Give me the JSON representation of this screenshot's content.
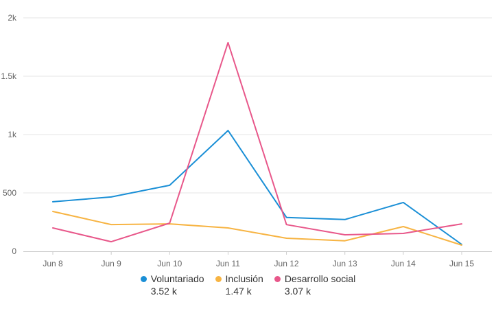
{
  "chart_data": {
    "type": "line",
    "title": "",
    "xlabel": "",
    "ylabel": "",
    "categories": [
      "Jun 8",
      "Jun 9",
      "Jun 10",
      "Jun 11",
      "Jun 12",
      "Jun 13",
      "Jun 14",
      "Jun 15"
    ],
    "ylim": [
      0,
      2000
    ],
    "yticks": [
      0,
      500,
      1000,
      1500,
      2000
    ],
    "ytick_labels": [
      "0",
      "500",
      "1k",
      "1.5k",
      "2k"
    ],
    "grid": true,
    "legend_position": "bottom",
    "series": [
      {
        "name": "Voluntariado",
        "color": "#1a8fd6",
        "total_label": "3.52 k",
        "values": [
          424,
          465,
          565,
          1035,
          290,
          272,
          418,
          59
        ]
      },
      {
        "name": "Inclusión",
        "color": "#f7b443",
        "total_label": "1.47 k",
        "values": [
          341,
          229,
          235,
          200,
          112,
          90,
          212,
          53
        ]
      },
      {
        "name": "Desarrollo social",
        "color": "#e8578a",
        "total_label": "3.07 k",
        "values": [
          200,
          82,
          241,
          1788,
          228,
          141,
          153,
          235
        ]
      }
    ]
  }
}
